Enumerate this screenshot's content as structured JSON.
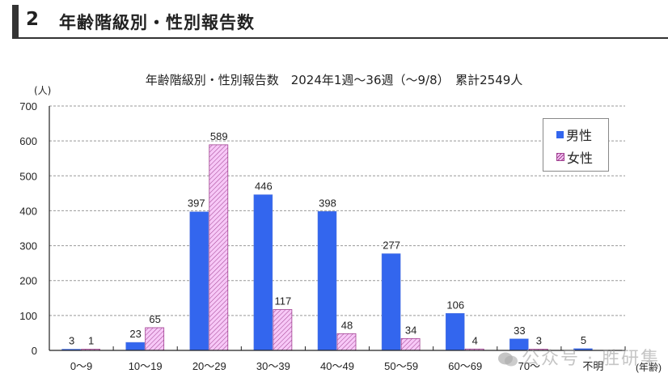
{
  "section": {
    "number": "2",
    "title": "年齢階級別・性別報告数"
  },
  "chart_data": {
    "type": "bar",
    "title": "年齢階級別・性別報告数　2024年1週～36週（～9/8）　累計2549人",
    "xlabel": "(年齢)",
    "ylabel": "(人)",
    "ylim": [
      0,
      700
    ],
    "yticks": [
      0,
      100,
      200,
      300,
      400,
      500,
      600,
      700
    ],
    "grid": true,
    "legend_position": "upper right",
    "categories": [
      "0～9",
      "10～19",
      "20～29",
      "30～39",
      "40～49",
      "50～59",
      "60～69",
      "70～",
      "不明"
    ],
    "series": [
      {
        "name": "男性",
        "color": "#3366ee",
        "pattern": "solid",
        "values": [
          3,
          23,
          397,
          446,
          398,
          277,
          106,
          33,
          5
        ]
      },
      {
        "name": "女性",
        "color": "#f5c7f5",
        "pattern": "diagonal-hatch",
        "values": [
          1,
          65,
          589,
          117,
          48,
          34,
          4,
          3,
          null
        ]
      }
    ]
  },
  "legend": {
    "male": "男性",
    "female": "女性"
  },
  "watermark": "公众号 · 胜研集"
}
